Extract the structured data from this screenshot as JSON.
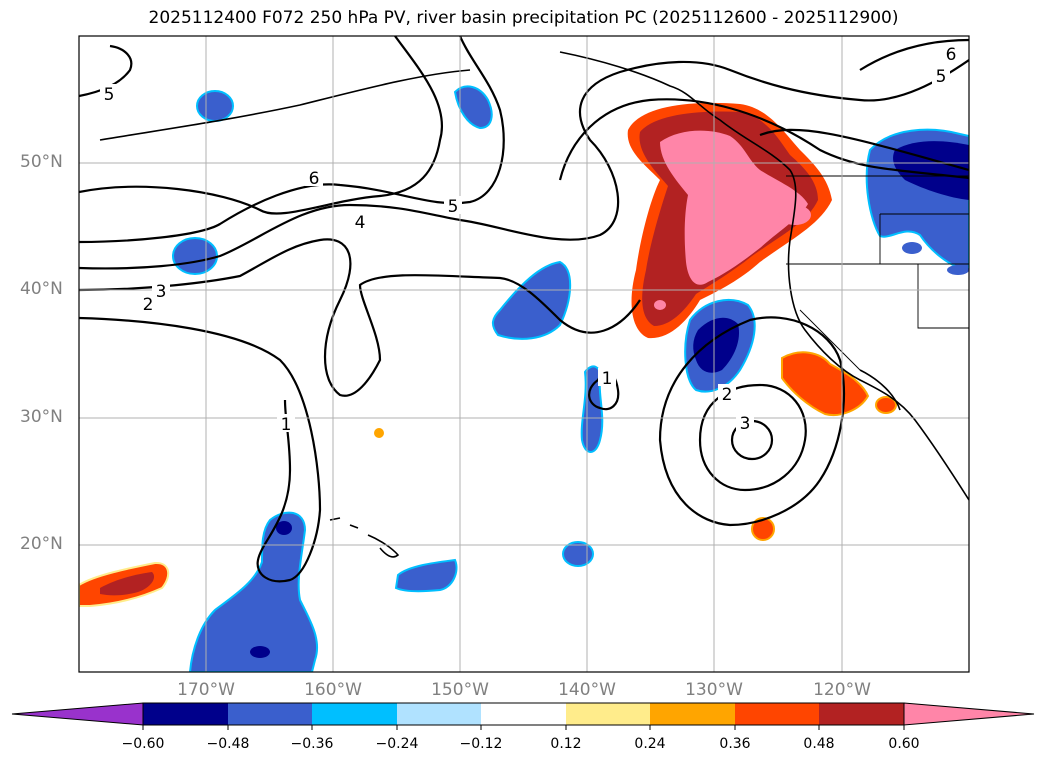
{
  "title": "2025112400 F072 250 hPa PV, river basin precipitation PC (2025112600 - 2025112900)",
  "lat_labels": [
    "50°N",
    "40°N",
    "30°N",
    "20°N"
  ],
  "lon_labels": [
    "170°W",
    "160°W",
    "150°W",
    "140°W",
    "130°W",
    "120°W"
  ],
  "contour_labels": [
    "5",
    "6",
    "5",
    "4",
    "3",
    "2",
    "1",
    "1",
    "2",
    "3",
    "5",
    "6"
  ],
  "colorbar": {
    "ticks": [
      "−0.60",
      "−0.48",
      "−0.36",
      "−0.24",
      "−0.12",
      "0.12",
      "0.24",
      "0.36",
      "0.48",
      "0.60"
    ],
    "colors": [
      "#9932cc",
      "#00008b",
      "#3a5fcd",
      "#00bfff",
      "#b0e2ff",
      "#ffffff",
      "#ffec8b",
      "#ffa500",
      "#ff4500",
      "#b22222",
      "#ff85a8"
    ]
  }
}
